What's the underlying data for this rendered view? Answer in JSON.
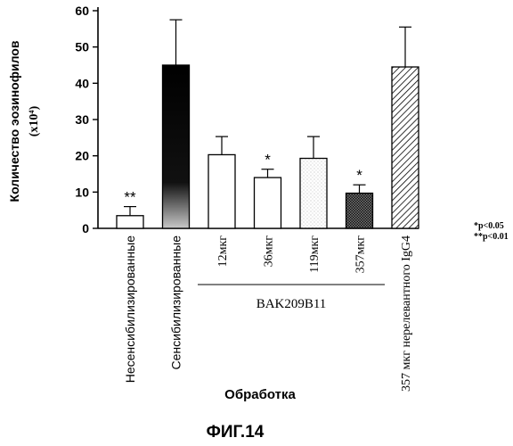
{
  "figure_label": "ФИГ.14",
  "chart_data": {
    "type": "bar",
    "ylabel": "Количество эозинофилов",
    "ylabel_unit": "(x10⁴)",
    "xlabel": "Обработка",
    "ylim": [
      0,
      60
    ],
    "yticks": [
      "0",
      "10",
      "20",
      "30",
      "40",
      "50",
      "60"
    ],
    "categories": [
      "Несенсибилизированные",
      "Сенсибилизированные",
      "12мкг",
      "36мкг",
      "119мкг",
      "357мкг",
      "357 мкг нерелевантного IgG4"
    ],
    "values": [
      3.5,
      45,
      20.3,
      14,
      19.3,
      9.7,
      44.5
    ],
    "errors": [
      2.5,
      12.5,
      5,
      2.3,
      6,
      2.3,
      11
    ],
    "significance": [
      "**",
      "",
      "",
      "*",
      "",
      "*",
      ""
    ],
    "fills": [
      "#ffffff",
      "#111111",
      "#ffffff",
      "#ffffff",
      "#f2f2f2",
      "#444444",
      "#ffffff"
    ],
    "group_label": "BAK209B11",
    "group_members": [
      "12мкг",
      "36мкг",
      "119мкг",
      "357мкг"
    ],
    "legend_note": [
      "*p<0.05",
      "**p<0.01"
    ]
  }
}
